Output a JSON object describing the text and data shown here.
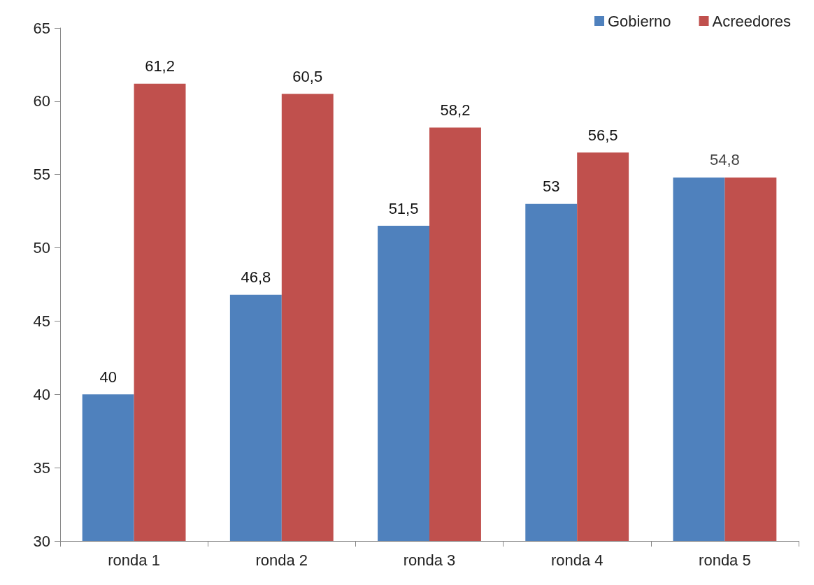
{
  "chart_data": {
    "type": "bar",
    "categories": [
      "ronda 1",
      "ronda 2",
      "ronda 3",
      "ronda 4",
      "ronda 5"
    ],
    "series": [
      {
        "name": "Gobierno",
        "color": "#4f81bd",
        "values": [
          40,
          46.8,
          51.5,
          53,
          54.8
        ],
        "value_labels": [
          "40",
          "46,8",
          "51,5",
          "53",
          null
        ]
      },
      {
        "name": "Acreedores",
        "color": "#c0504d",
        "values": [
          61.2,
          60.5,
          58.2,
          56.5,
          54.8
        ],
        "value_labels": [
          "61,2",
          "60,5",
          "58,2",
          "56,5",
          null
        ]
      }
    ],
    "annotations": [
      {
        "text": "54,8",
        "x": "ronda 5",
        "y": 54.8
      }
    ],
    "ylim": [
      30,
      65
    ],
    "yticks": [
      30,
      35,
      40,
      45,
      50,
      55,
      60,
      65
    ],
    "grid": false,
    "legend": "top right"
  }
}
